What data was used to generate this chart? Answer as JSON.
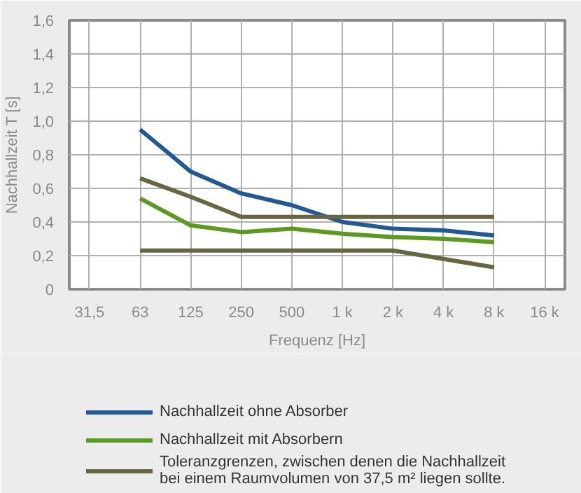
{
  "chart_data": {
    "type": "line",
    "xlabel": "Frequenz [Hz]",
    "ylabel": "Nachhallzeit T [s]",
    "categories": [
      "31,5",
      "63",
      "125",
      "250",
      "500",
      "1 k",
      "2 k",
      "4 k",
      "8 k",
      "16 k"
    ],
    "series": [
      {
        "name": "Nachhallzeit ohne Absorber",
        "color": "#1f5a96",
        "values": [
          null,
          0.95,
          0.7,
          0.57,
          0.5,
          0.4,
          0.36,
          0.35,
          0.32,
          null
        ]
      },
      {
        "name": "Nachhallzeit mit Absorbern",
        "color": "#5a9a1e",
        "values": [
          null,
          0.54,
          0.38,
          0.34,
          0.36,
          0.33,
          0.31,
          0.3,
          0.28,
          null
        ]
      },
      {
        "name": "Toleranzgrenzen, zwischen denen die Nachhallzeit bei einem Raumvolumen von 37,5 m² liegen sollte.",
        "color": "#666640",
        "values": [
          null,
          0.66,
          0.55,
          0.43,
          0.43,
          0.43,
          0.43,
          0.43,
          0.43,
          null
        ]
      },
      {
        "color": "#666640",
        "values": [
          null,
          0.23,
          0.23,
          0.23,
          0.23,
          0.23,
          0.23,
          0.18,
          0.13,
          null
        ]
      }
    ],
    "ylim": [
      0,
      1.6
    ],
    "yticks": [
      0,
      {
        "value": 0.2,
        "label": "0,2"
      },
      {
        "value": 0.4,
        "label": "0,4"
      },
      {
        "value": 0.6,
        "label": "0,6"
      },
      {
        "value": 0.8,
        "label": "0,8"
      },
      {
        "value": 1.0,
        "label": "1,0"
      },
      {
        "value": 1.2,
        "label": "1,2"
      },
      {
        "value": 1.4,
        "label": "1,4"
      },
      {
        "value": 1.6,
        "label": "1,6"
      }
    ],
    "grid": true,
    "legend": "bottom",
    "marker": "none",
    "line_style": "solid"
  }
}
